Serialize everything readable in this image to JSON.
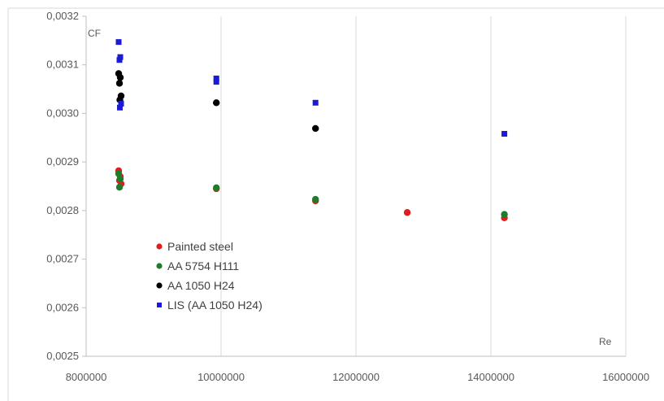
{
  "chart_data": {
    "type": "scatter",
    "title": "",
    "xlabel": "Re",
    "ylabel": "CF",
    "xlim": [
      8000000,
      16000000
    ],
    "ylim": [
      0.0025,
      0.0032
    ],
    "x_ticks": [
      8000000,
      10000000,
      12000000,
      14000000,
      16000000
    ],
    "x_tick_labels": [
      "8000000",
      "10000000",
      "12000000",
      "14000000",
      "16000000"
    ],
    "y_ticks": [
      0.0025,
      0.0026,
      0.0027,
      0.0028,
      0.0029,
      0.003,
      0.0031,
      0.0032
    ],
    "y_tick_labels": [
      "0,0025",
      "0,0026",
      "0,0027",
      "0,0028",
      "0,0029",
      "0,0030",
      "0,0031",
      "0,0032"
    ],
    "grid": "vertical",
    "legend_position": "lower-left",
    "series": [
      {
        "name": "Painted steel",
        "color": "#e01e1e",
        "marker": "circle",
        "points": [
          {
            "x": 8500000,
            "y": 0.002882
          },
          {
            "x": 8500000,
            "y": 0.00287
          },
          {
            "x": 8500000,
            "y": 0.002862
          },
          {
            "x": 8500000,
            "y": 0.002855
          },
          {
            "x": 9930000,
            "y": 0.002845
          },
          {
            "x": 11400000,
            "y": 0.00282
          },
          {
            "x": 12760000,
            "y": 0.002796
          },
          {
            "x": 14200000,
            "y": 0.002785
          }
        ]
      },
      {
        "name": "AA 5754 H111",
        "color": "#1e7d2a",
        "marker": "circle",
        "points": [
          {
            "x": 8500000,
            "y": 0.002876
          },
          {
            "x": 8500000,
            "y": 0.002865
          },
          {
            "x": 8500000,
            "y": 0.002848
          },
          {
            "x": 9930000,
            "y": 0.002847
          },
          {
            "x": 11400000,
            "y": 0.002823
          },
          {
            "x": 14200000,
            "y": 0.002792
          }
        ]
      },
      {
        "name": "AA 1050 H24",
        "color": "#000000",
        "marker": "circle",
        "points": [
          {
            "x": 8500000,
            "y": 0.003082
          },
          {
            "x": 8500000,
            "y": 0.003074
          },
          {
            "x": 8500000,
            "y": 0.003062
          },
          {
            "x": 8500000,
            "y": 0.003036
          },
          {
            "x": 8500000,
            "y": 0.003028
          },
          {
            "x": 9930000,
            "y": 0.003022
          },
          {
            "x": 11400000,
            "y": 0.002969
          }
        ]
      },
      {
        "name": "LIS (AA 1050 H24)",
        "color": "#1b1bd6",
        "marker": "square",
        "points": [
          {
            "x": 8500000,
            "y": 0.003147
          },
          {
            "x": 8500000,
            "y": 0.003116
          },
          {
            "x": 8500000,
            "y": 0.00311
          },
          {
            "x": 8500000,
            "y": 0.00302
          },
          {
            "x": 8500000,
            "y": 0.003012
          },
          {
            "x": 9930000,
            "y": 0.003072
          },
          {
            "x": 9930000,
            "y": 0.003065
          },
          {
            "x": 11400000,
            "y": 0.003022
          },
          {
            "x": 14200000,
            "y": 0.002958
          }
        ]
      }
    ]
  }
}
